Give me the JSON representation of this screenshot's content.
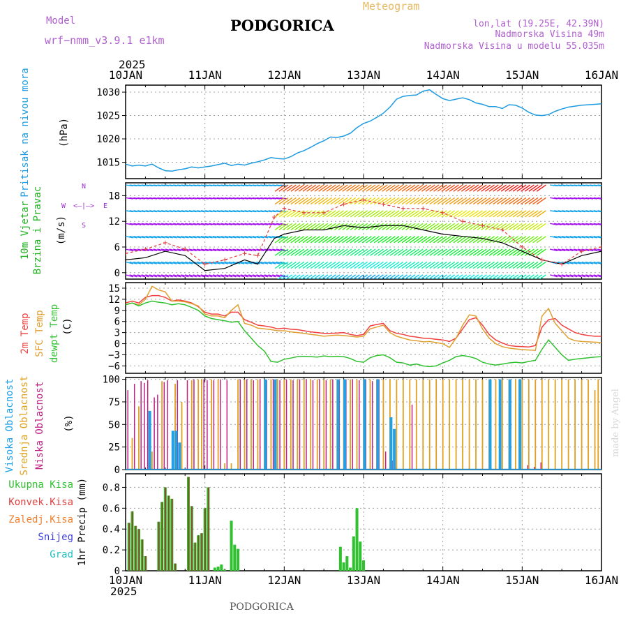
{
  "header": {
    "model_label": "Model",
    "model_name": "wrf−nmm_v3.9.1  e1km",
    "station": "PODGORICA",
    "product": "Meteogram",
    "coords": "lon,lat (19.25E, 42.39N)",
    "altitude": "Nadmorska Visina 49m",
    "model_altitude": "Nadmorska Visina u modelu 55.035m"
  },
  "footer": {
    "station": "PODGORICA",
    "credit": "made by Angel"
  },
  "time_axis": {
    "year": "2025",
    "ticks": [
      "10JAN",
      "11JAN",
      "12JAN",
      "13JAN",
      "14JAN",
      "15JAN",
      "16JAN"
    ],
    "range_hours": [
      0,
      144
    ]
  },
  "colors": {
    "pressure": "#1e9be0",
    "wind_axis": "#9b30d0",
    "temp_2m": "#f04040",
    "temp_sfc": "#e0a030",
    "dewpoint": "#30c030",
    "cloud_high": "#20a0e8",
    "cloud_mid": "#e0a020",
    "cloud_low": "#c02080",
    "precip_total": "#30c030",
    "precip_conv": "#e04040",
    "precip_frz": "#f08030",
    "precip_snow": "#4040e0",
    "precip_hail": "#20c0c0",
    "frame": "#000000",
    "grid": "#a0a0a0"
  },
  "chart_data": [
    {
      "type": "line",
      "panel": "pressure",
      "ylabel_main": "Pritisak na nivou mora",
      "ylabel_unit": "(hPa)",
      "yticks": [
        "1015",
        "1020",
        "1025",
        "1030"
      ],
      "ylim": [
        1011.5,
        1031.5
      ],
      "grid": true,
      "series": [
        {
          "x": [
            0,
            2,
            4,
            6,
            8,
            10,
            12,
            14,
            16,
            18,
            20,
            22,
            24,
            26,
            28,
            30,
            32,
            34,
            36,
            38,
            40,
            42,
            44,
            46,
            48,
            50,
            52,
            54,
            56,
            58,
            60,
            62,
            64,
            66,
            68,
            70,
            72,
            74,
            76,
            78,
            80,
            82,
            84,
            86,
            88,
            90,
            92,
            94,
            96,
            98,
            100,
            102,
            104,
            106,
            108,
            110,
            112,
            114,
            116,
            118,
            120,
            122,
            124,
            126,
            128,
            130,
            132,
            134,
            136,
            138,
            140,
            142,
            144
          ],
          "y": [
            1014.6,
            1014.2,
            1014.4,
            1014.2,
            1014.6,
            1013.8,
            1013.2,
            1013.1,
            1013.4,
            1013.6,
            1014.0,
            1013.8,
            1014.0,
            1014.2,
            1014.5,
            1014.8,
            1014.3,
            1014.6,
            1014.4,
            1014.8,
            1015.1,
            1015.5,
            1016.0,
            1015.8,
            1015.7,
            1016.2,
            1017.0,
            1017.5,
            1018.2,
            1019.0,
            1019.6,
            1020.4,
            1020.3,
            1020.6,
            1021.2,
            1022.4,
            1023.3,
            1023.8,
            1024.6,
            1025.5,
            1026.8,
            1028.5,
            1029.1,
            1029.3,
            1029.4,
            1030.2,
            1030.5,
            1029.5,
            1028.6,
            1028.2,
            1028.5,
            1028.8,
            1028.4,
            1027.7,
            1027.4,
            1026.9,
            1026.9,
            1026.5,
            1027.3,
            1027.2,
            1026.6,
            1025.7,
            1025.1,
            1025.0,
            1025.2,
            1025.9,
            1026.4,
            1026.8,
            1027.0,
            1027.2,
            1027.3,
            1027.4,
            1027.5
          ]
        }
      ]
    },
    {
      "type": "wind_barbs",
      "panel": "wind",
      "ylabel_main": "10m Vjetar",
      "ylabel_sub": "Brzina i Pravac",
      "ylabel_unit": "(m/s)",
      "direction_legend": {
        "n": "N",
        "w": "W",
        "e": "E",
        "s": "S",
        "arrows": "<–|–>"
      },
      "yticks": [
        "0",
        "6",
        "12",
        "18"
      ],
      "ylim": [
        -1.5,
        21
      ],
      "grid": true,
      "speed_x": [
        0,
        6,
        12,
        18,
        24,
        30,
        36,
        40,
        45,
        48,
        54,
        60,
        66,
        72,
        78,
        84,
        90,
        96,
        102,
        108,
        114,
        120,
        126,
        132,
        138,
        144
      ],
      "speed_y": [
        3,
        3.5,
        5,
        4,
        0.5,
        1,
        3,
        2,
        8,
        9,
        10,
        10,
        11,
        10.5,
        11,
        11,
        10,
        9,
        8.5,
        8,
        7,
        5,
        3,
        2,
        4,
        5
      ],
      "gust_x": [
        0,
        6,
        12,
        18,
        24,
        30,
        36,
        40,
        45,
        48,
        54,
        60,
        66,
        72,
        78,
        84,
        90,
        96,
        102,
        108,
        114,
        120,
        126,
        132,
        138,
        144
      ],
      "gust_y": [
        4.5,
        5.5,
        7,
        5.5,
        2,
        3,
        4.5,
        4,
        13,
        15,
        14,
        14,
        16,
        17,
        16,
        15,
        15,
        14,
        12,
        11,
        10,
        6,
        3,
        2,
        5,
        6
      ]
    },
    {
      "type": "line",
      "panel": "temperature",
      "ylabel_series": [
        "2m Temp",
        "SFC Temp",
        "dewpt Temp"
      ],
      "ylabel_unit": "(C)",
      "yticks": [
        "15",
        "12",
        "9",
        "6",
        "3",
        "0",
        "−3",
        "−6"
      ],
      "ylim": [
        -8,
        16.5
      ],
      "grid": true,
      "x": [
        0,
        2,
        4,
        6,
        8,
        10,
        12,
        14,
        16,
        18,
        20,
        22,
        24,
        26,
        28,
        30,
        32,
        34,
        36,
        38,
        40,
        42,
        44,
        46,
        48,
        50,
        52,
        54,
        56,
        58,
        60,
        62,
        64,
        66,
        68,
        70,
        72,
        74,
        76,
        78,
        80,
        82,
        84,
        86,
        88,
        90,
        92,
        94,
        96,
        98,
        100,
        102,
        104,
        106,
        108,
        110,
        112,
        114,
        116,
        118,
        120,
        122,
        124,
        126,
        128,
        130,
        132,
        134,
        136,
        138,
        140,
        142,
        144
      ],
      "series": [
        {
          "name": "2m Temp",
          "y": [
            11,
            11.5,
            11,
            12.5,
            13,
            13,
            12.5,
            11.5,
            11.8,
            11.5,
            11,
            10,
            8.5,
            8,
            8,
            7.5,
            8.5,
            8.5,
            6.5,
            5.8,
            5.0,
            4.8,
            4.5,
            4.0,
            4.2,
            3.9,
            3.8,
            3.5,
            3.2,
            3.0,
            2.8,
            2.8,
            2.9,
            3.0,
            2.5,
            2.2,
            2.5,
            4.8,
            5.2,
            5.5,
            3.5,
            2.8,
            2.5,
            2.0,
            1.8,
            1.5,
            1.4,
            1.2,
            1.0,
            0.6,
            1.5,
            4.0,
            6.5,
            7.0,
            5.0,
            2.5,
            1.0,
            0.2,
            -0.5,
            -0.7,
            -0.8,
            -0.9,
            -0.5,
            4.5,
            6.5,
            6.8,
            5.0,
            4.0,
            3.0,
            2.5,
            2.2,
            2.0,
            2.0
          ]
        },
        {
          "name": "SFC Temp",
          "y": [
            10.5,
            11,
            10.5,
            12,
            15.5,
            14.5,
            14,
            11.5,
            11.5,
            11.3,
            10.8,
            10.2,
            8.0,
            7.5,
            7.5,
            7.0,
            9.0,
            10.5,
            5.5,
            5.0,
            4.2,
            4.0,
            3.8,
            3.5,
            3.5,
            3.2,
            3.0,
            2.8,
            2.5,
            2.3,
            2.0,
            2.2,
            2.3,
            2.2,
            2.0,
            1.8,
            2.0,
            4.0,
            4.5,
            5.0,
            3.0,
            2.0,
            1.5,
            1.0,
            0.8,
            0.5,
            0.6,
            0.3,
            0.0,
            -1.0,
            1.5,
            5.0,
            7.8,
            7.5,
            4.0,
            1.5,
            0.0,
            -0.8,
            -1.2,
            -1.4,
            -1.6,
            -1.7,
            -1.8,
            7.5,
            9.5,
            5.5,
            3.5,
            1.5,
            0.8,
            0.6,
            0.5,
            0.4,
            0.3
          ]
        },
        {
          "name": "dewpt Temp",
          "y": [
            10.5,
            11,
            10.2,
            11,
            11.5,
            11.2,
            11,
            10.5,
            10.8,
            10.5,
            9.8,
            9.0,
            7.5,
            6.8,
            6.5,
            6.2,
            5.8,
            6.0,
            3.5,
            1.5,
            -0.5,
            -2.0,
            -4.8,
            -5.0,
            -4.2,
            -3.9,
            -3.5,
            -3.4,
            -3.5,
            -3.6,
            -3.3,
            -3.5,
            -3.4,
            -3.5,
            -4.0,
            -4.8,
            -5.0,
            -3.8,
            -3.2,
            -3.0,
            -3.8,
            -5.0,
            -5.2,
            -5.8,
            -5.5,
            -6.0,
            -6.2,
            -6.0,
            -5.2,
            -4.5,
            -3.5,
            -3.2,
            -3.5,
            -4.0,
            -5.0,
            -5.5,
            -5.8,
            -5.5,
            -5.2,
            -5.0,
            -5.2,
            -4.8,
            -4.5,
            -1.5,
            1.0,
            -1.0,
            -3.0,
            -4.5,
            -4.2,
            -4.0,
            -3.8,
            -3.6,
            -3.5
          ]
        }
      ]
    },
    {
      "type": "bar",
      "panel": "cloud",
      "ylabel_series": [
        "Visoka Oblacnost",
        "Srednja Oblacnost",
        "Niska Oblacnost"
      ],
      "ylabel_unit": "(%)",
      "yticks": [
        "0",
        "25",
        "50",
        "75",
        "100"
      ],
      "ylim": [
        0,
        102
      ],
      "grid": true,
      "series": [
        {
          "name": "Niska Oblacnost",
          "x": [
            1,
            3,
            5,
            6,
            7,
            9,
            10,
            12,
            13,
            16,
            19,
            21,
            24,
            25,
            27,
            29,
            31,
            35,
            37,
            39,
            41,
            43,
            45,
            47,
            49,
            51,
            53,
            55,
            57,
            59,
            61,
            63,
            65,
            67,
            69,
            71,
            73,
            75,
            77,
            79,
            81,
            87,
            122,
            124,
            126
          ],
          "y": [
            88,
            95,
            98,
            96,
            99,
            80,
            83,
            97,
            99,
            99,
            99,
            100,
            100,
            99,
            99,
            100,
            99,
            100,
            100,
            99,
            100,
            99,
            100,
            99,
            100,
            99,
            100,
            100,
            99,
            100,
            99,
            100,
            99,
            100,
            100,
            99,
            100,
            98,
            100,
            20,
            10,
            72,
            5,
            3,
            8
          ]
        },
        {
          "name": "Srednja Oblacnost",
          "x": [
            2,
            4,
            8,
            11,
            15,
            17,
            20,
            22,
            23,
            26,
            28,
            30,
            32,
            34,
            36,
            38,
            40,
            42,
            44,
            46,
            48,
            50,
            52,
            54,
            56,
            58,
            60,
            62,
            64,
            66,
            68,
            70,
            72,
            74,
            76,
            78,
            80,
            82,
            84,
            86,
            88,
            90,
            92,
            94,
            96,
            98,
            100,
            102,
            104,
            106,
            108,
            110,
            112,
            114,
            116,
            118,
            120,
            122,
            124,
            126,
            128,
            130,
            132,
            134,
            136,
            138,
            140,
            142,
            143
          ],
          "y": [
            35,
            70,
            20,
            98,
            95,
            75,
            99,
            100,
            100,
            100,
            100,
            7,
            7,
            100,
            100,
            100,
            100,
            100,
            100,
            100,
            100,
            100,
            100,
            100,
            100,
            100,
            100,
            100,
            100,
            100,
            100,
            100,
            100,
            100,
            100,
            100,
            100,
            100,
            100,
            100,
            100,
            100,
            100,
            100,
            100,
            100,
            100,
            100,
            100,
            100,
            100,
            100,
            100,
            100,
            100,
            100,
            100,
            100,
            100,
            100,
            100,
            100,
            100,
            100,
            100,
            100,
            100,
            88,
            100
          ]
        },
        {
          "name": "Visoka Oblacnost",
          "x": [
            7,
            14,
            15,
            16,
            42,
            45,
            64,
            66,
            72,
            76,
            80,
            81,
            110,
            113,
            116,
            119
          ],
          "y": [
            65,
            43,
            43,
            30,
            100,
            100,
            100,
            100,
            100,
            100,
            58,
            45,
            100,
            100,
            100,
            100
          ]
        }
      ]
    },
    {
      "type": "bar",
      "panel": "precipitation",
      "ylabel_series": [
        "Ukupna Kisa",
        "Konvek.Kisa",
        "Zaledj.Kisa",
        "Snijeg",
        "Grad"
      ],
      "ylabel_unit": "1hr Precip (mm)",
      "yticks": [
        "0",
        "0.2",
        "0.4",
        "0.6",
        "0.8"
      ],
      "ylim": [
        0,
        0.93
      ],
      "grid": true,
      "x": [
        1,
        2,
        3,
        4,
        5,
        6,
        10,
        11,
        12,
        13,
        14,
        15,
        19,
        20,
        21,
        22,
        23,
        24,
        25,
        27,
        28,
        29,
        30,
        32,
        33,
        34,
        65,
        66,
        67,
        68,
        69,
        70,
        71,
        72
      ],
      "series": [
        {
          "name": "Ukupna Kisa",
          "y": [
            0.46,
            0.57,
            0.43,
            0.4,
            0.3,
            0.14,
            0.47,
            0.66,
            0.8,
            0.72,
            0.69,
            0.07,
            0.9,
            0.62,
            0.27,
            0.34,
            0.36,
            0.6,
            0.8,
            0.03,
            0.04,
            0.06,
            0.01,
            0.48,
            0.25,
            0.21,
            0.23,
            0.08,
            0.14,
            0.03,
            0.33,
            0.6,
            0.28,
            0.1
          ]
        },
        {
          "name": "Konvek.Kisa",
          "y": [
            0.46,
            0.57,
            0.43,
            0.4,
            0.3,
            0.14,
            0.47,
            0.66,
            0.8,
            0.72,
            0.69,
            0.07,
            0.9,
            0.62,
            0.27,
            0.34,
            0.36,
            0.6,
            0.8,
            0,
            0,
            0,
            0,
            0,
            0,
            0,
            0,
            0,
            0,
            0,
            0,
            0,
            0,
            0
          ]
        }
      ]
    }
  ]
}
